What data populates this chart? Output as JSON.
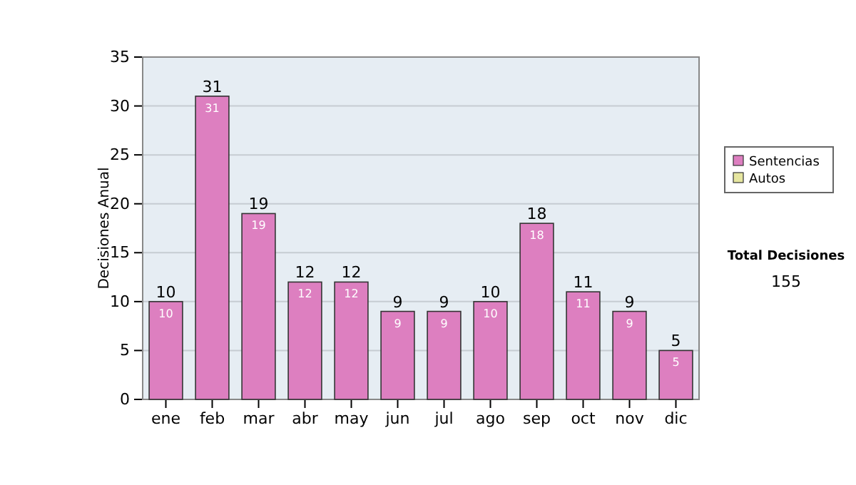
{
  "chart_data": {
    "type": "bar",
    "ylabel": "Decisiones Anual",
    "categories": [
      "ene",
      "feb",
      "mar",
      "abr",
      "may",
      "jun",
      "jul",
      "ago",
      "sep",
      "oct",
      "nov",
      "dic"
    ],
    "series": [
      {
        "name": "Sentencias",
        "color": "#dd7fc0",
        "values": [
          10,
          31,
          19,
          12,
          12,
          9,
          9,
          10,
          18,
          11,
          9,
          5
        ],
        "value_labels": [
          "10",
          "31",
          "19",
          "12",
          "12",
          "9",
          "9",
          "10",
          "18",
          "11",
          "9",
          "5"
        ]
      },
      {
        "name": "Autos",
        "color": "#e6e6a0",
        "values": [
          0,
          0,
          0,
          0,
          0,
          0,
          0,
          0,
          0,
          0,
          0,
          0
        ],
        "value_labels": [
          null,
          null,
          null,
          null,
          null,
          null,
          null,
          null,
          null,
          null,
          null,
          null
        ]
      }
    ],
    "stacked": true,
    "totals": [
      "10",
      "31",
      "19",
      "12",
      "12",
      "9",
      "9",
      "10",
      "18",
      "11",
      "9",
      "5"
    ],
    "ylim": [
      0,
      35
    ],
    "yticks": [
      0,
      5,
      10,
      15,
      20,
      25,
      30,
      35
    ],
    "grid": "y",
    "legend": "right",
    "annotations": [
      "Total Decisiones",
      "155"
    ]
  }
}
